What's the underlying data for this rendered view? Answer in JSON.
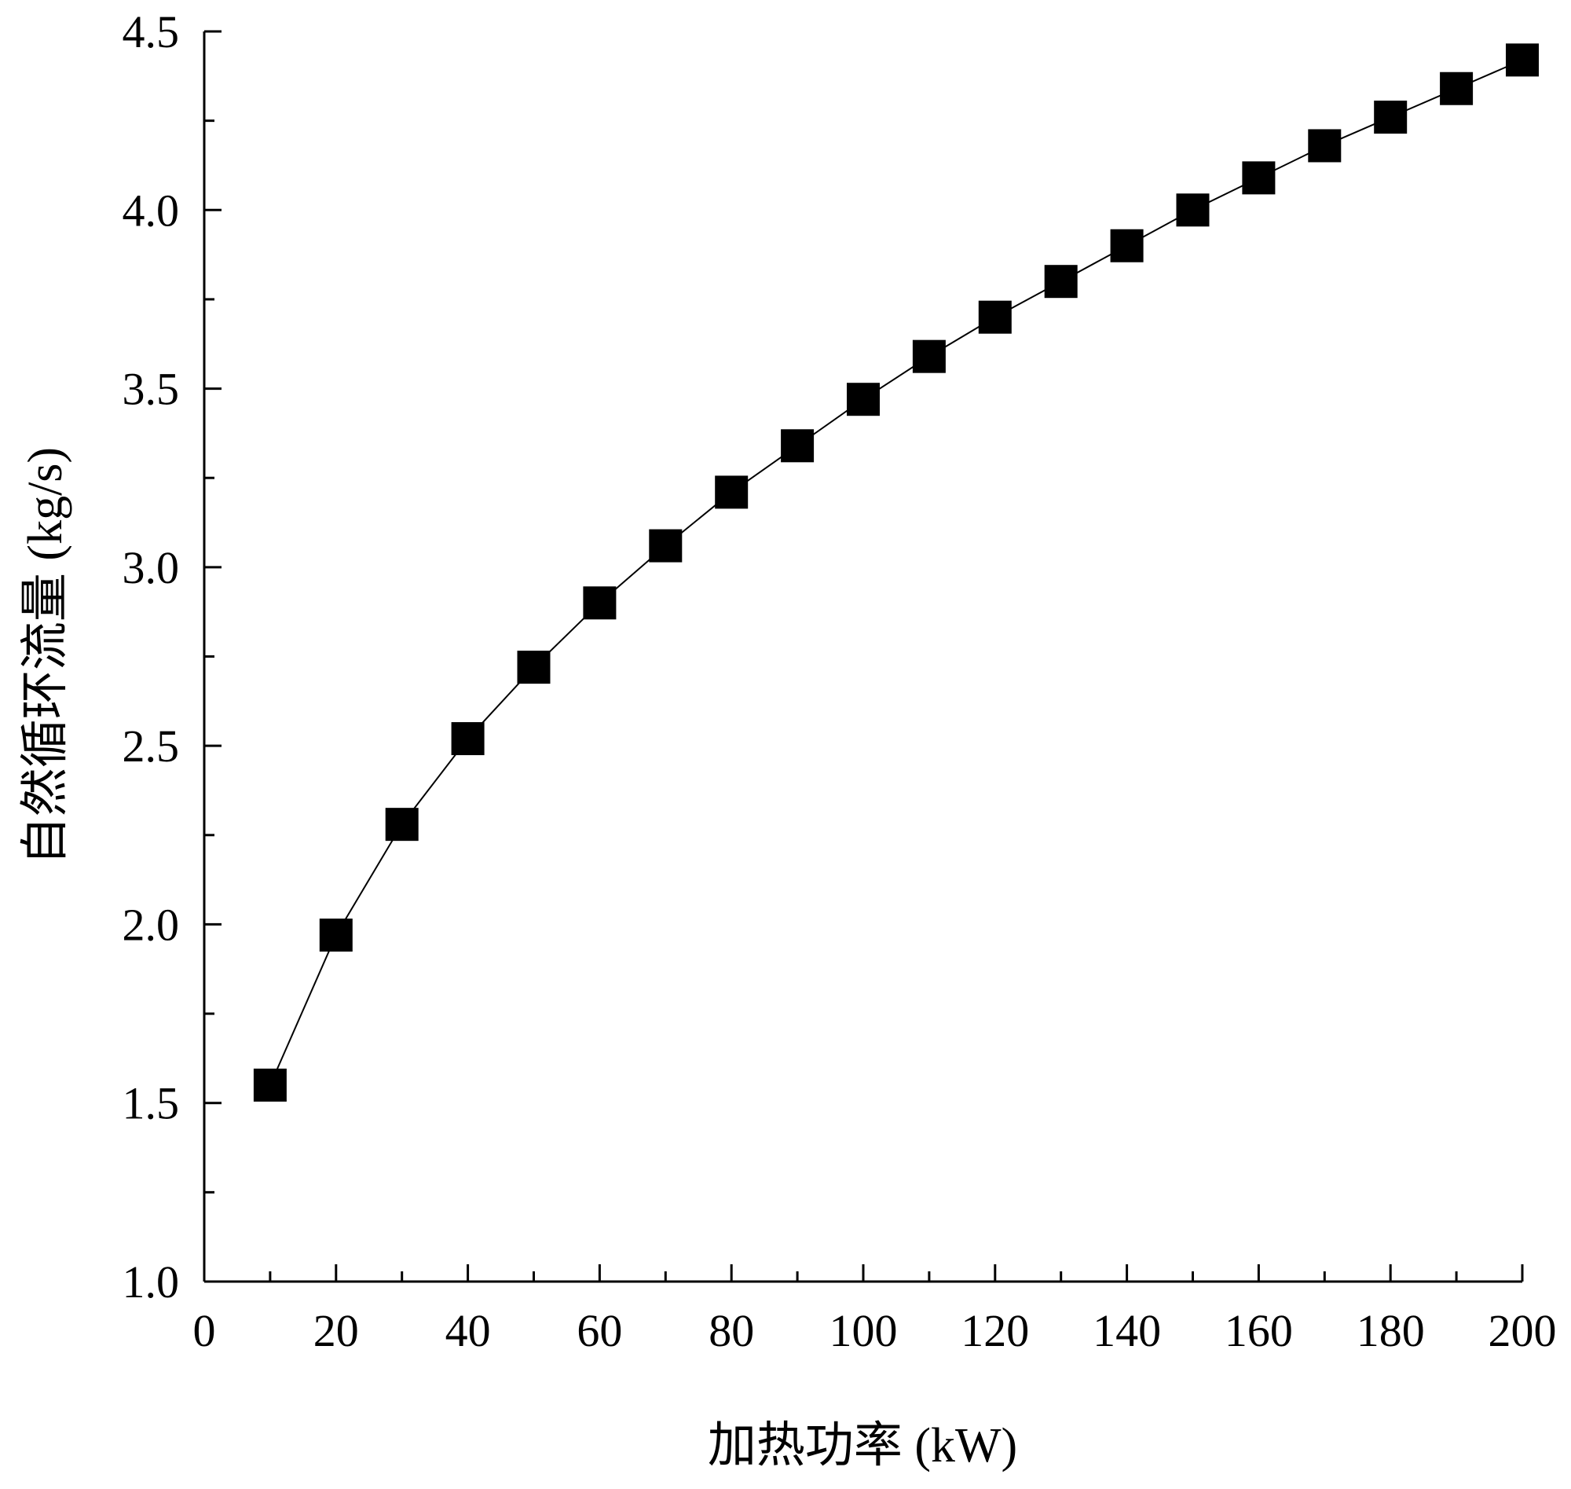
{
  "chart_data": {
    "type": "line",
    "title": "",
    "xlabel": "加热功率 (kW)",
    "ylabel": "自然循环流量 (kg/s)",
    "xlim": [
      0,
      200
    ],
    "ylim": [
      1.0,
      4.5
    ],
    "xticks": [
      0,
      20,
      40,
      60,
      80,
      100,
      120,
      140,
      160,
      180,
      200
    ],
    "xtick_labels": [
      "0",
      "20",
      "40",
      "60",
      "80",
      "100",
      "120",
      "140",
      "160",
      "180",
      "200"
    ],
    "yticks": [
      1.0,
      1.5,
      2.0,
      2.5,
      3.0,
      3.5,
      4.0,
      4.5
    ],
    "ytick_labels": [
      "1.0",
      "1.5",
      "2.0",
      "2.5",
      "3.0",
      "3.5",
      "4.0",
      "4.5"
    ],
    "grid": false,
    "legend": "none",
    "marker": "filled-square",
    "color": "#000000",
    "series": [
      {
        "x": [
          10,
          20,
          30,
          40,
          50,
          60,
          70,
          80,
          90,
          100,
          110,
          120,
          130,
          140,
          150,
          160,
          170,
          180,
          190,
          200
        ],
        "y": [
          1.55,
          1.97,
          2.28,
          2.52,
          2.72,
          2.9,
          3.06,
          3.21,
          3.34,
          3.47,
          3.59,
          3.7,
          3.8,
          3.9,
          4.0,
          4.09,
          4.18,
          4.26,
          4.34,
          4.42
        ]
      }
    ]
  }
}
